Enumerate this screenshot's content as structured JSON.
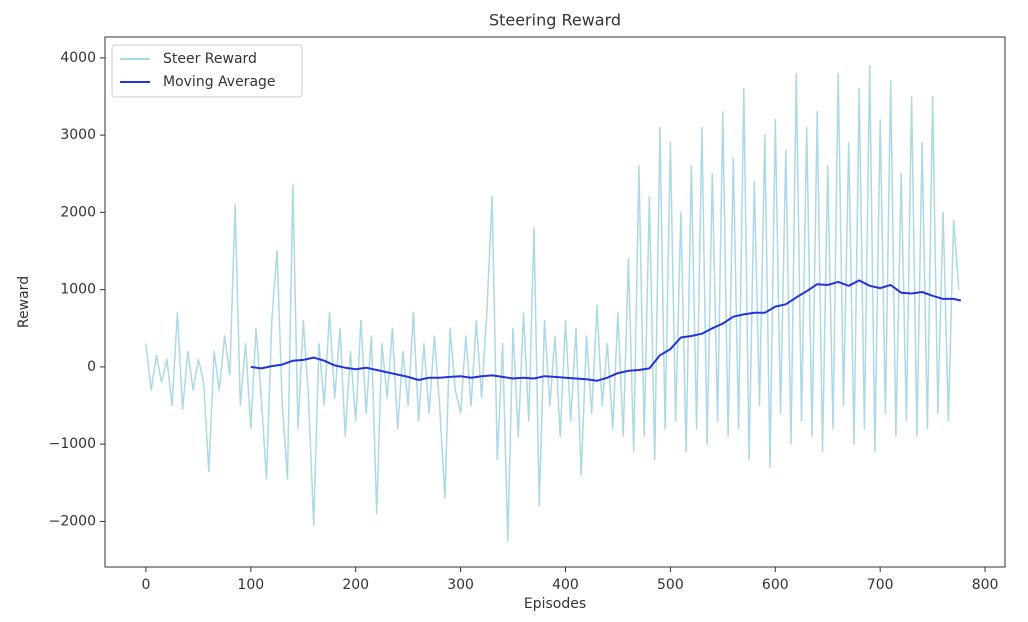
{
  "chart_data": {
    "type": "line",
    "title": "Steering Reward",
    "x_label": "Episodes",
    "y_label": "Reward",
    "xlim": [
      -39,
      819
    ],
    "ylim": [
      -2590,
      4270
    ],
    "xticks": [
      0,
      100,
      200,
      300,
      400,
      500,
      600,
      700,
      800
    ],
    "yticks": [
      {
        "value": -2000,
        "label": "−2000"
      },
      {
        "value": -1000,
        "label": "−1000"
      },
      0,
      1000,
      2000,
      3000,
      4000
    ],
    "legend": "upper left",
    "series": [
      {
        "name": "Steer Reward",
        "color": "#add8e6",
        "x": [
          0,
          5,
          10,
          15,
          20,
          25,
          30,
          35,
          40,
          45,
          50,
          55,
          60,
          65,
          70,
          75,
          80,
          85,
          90,
          95,
          100,
          105,
          110,
          115,
          120,
          125,
          130,
          135,
          140,
          145,
          150,
          155,
          160,
          165,
          170,
          175,
          180,
          185,
          190,
          195,
          200,
          205,
          210,
          215,
          220,
          225,
          230,
          235,
          240,
          245,
          250,
          255,
          260,
          265,
          270,
          275,
          280,
          285,
          290,
          295,
          300,
          305,
          310,
          315,
          320,
          325,
          330,
          335,
          340,
          345,
          350,
          355,
          360,
          365,
          370,
          375,
          380,
          385,
          390,
          395,
          400,
          405,
          410,
          415,
          420,
          425,
          430,
          435,
          440,
          445,
          450,
          455,
          460,
          465,
          470,
          475,
          480,
          485,
          490,
          495,
          500,
          505,
          510,
          515,
          520,
          525,
          530,
          535,
          540,
          545,
          550,
          555,
          560,
          565,
          570,
          575,
          580,
          585,
          590,
          595,
          600,
          605,
          610,
          615,
          620,
          625,
          630,
          635,
          640,
          645,
          650,
          655,
          660,
          665,
          670,
          675,
          680,
          685,
          690,
          695,
          700,
          705,
          710,
          715,
          720,
          725,
          730,
          735,
          740,
          745,
          750,
          755,
          760,
          765,
          770,
          775
        ],
        "values": [
          300,
          -300,
          150,
          -200,
          100,
          -500,
          700,
          -550,
          200,
          -300,
          100,
          -200,
          -1350,
          200,
          -300,
          400,
          -100,
          2100,
          -500,
          300,
          -800,
          500,
          -400,
          -1450,
          600,
          1500,
          -500,
          -1450,
          2350,
          -800,
          600,
          -400,
          -2050,
          300,
          -500,
          700,
          -400,
          500,
          -900,
          200,
          -700,
          600,
          -600,
          400,
          -1900,
          300,
          -400,
          500,
          -800,
          200,
          -500,
          700,
          -700,
          300,
          -600,
          400,
          -500,
          -1700,
          500,
          -300,
          -600,
          400,
          -500,
          600,
          -400,
          700,
          2200,
          -1200,
          300,
          -2250,
          500,
          -900,
          700,
          -700,
          1800,
          -1800,
          600,
          -500,
          400,
          -900,
          600,
          -700,
          500,
          -1400,
          400,
          -600,
          800,
          -500,
          300,
          -800,
          700,
          -900,
          1400,
          -1100,
          2600,
          -900,
          2200,
          -1200,
          3100,
          -800,
          2900,
          -700,
          2000,
          -1100,
          2600,
          -800,
          3100,
          -1000,
          2500,
          -700,
          3300,
          -900,
          2700,
          -800,
          3600,
          -1200,
          2400,
          -500,
          3000,
          -1300,
          3200,
          -600,
          2800,
          -1000,
          3800,
          -700,
          3100,
          -900,
          3300,
          -1100,
          2600,
          -800,
          3800,
          -500,
          2900,
          -1000,
          3600,
          -800,
          3900,
          -1100,
          3200,
          -600,
          3700,
          -900,
          2500,
          -700,
          3500,
          -900,
          2900,
          -800,
          3500,
          -600,
          2000,
          -700,
          1900,
          1000
        ]
      },
      {
        "name": "Moving Average",
        "color": "#2233dd",
        "x": [
          100,
          110,
          120,
          130,
          140,
          150,
          160,
          170,
          180,
          190,
          200,
          210,
          220,
          230,
          240,
          250,
          260,
          270,
          280,
          290,
          300,
          310,
          320,
          330,
          340,
          350,
          360,
          370,
          380,
          390,
          400,
          410,
          420,
          430,
          440,
          450,
          460,
          470,
          480,
          490,
          500,
          510,
          520,
          530,
          540,
          550,
          560,
          570,
          580,
          590,
          600,
          610,
          620,
          630,
          640,
          650,
          660,
          670,
          680,
          690,
          700,
          710,
          720,
          730,
          740,
          750,
          760,
          770,
          777
        ],
        "values": [
          0,
          -20,
          10,
          30,
          80,
          90,
          120,
          80,
          20,
          -10,
          -30,
          -10,
          -40,
          -70,
          -100,
          -130,
          -170,
          -140,
          -140,
          -130,
          -120,
          -140,
          -120,
          -110,
          -130,
          -150,
          -140,
          -150,
          -120,
          -130,
          -140,
          -150,
          -160,
          -180,
          -140,
          -80,
          -50,
          -40,
          -20,
          150,
          230,
          380,
          400,
          430,
          500,
          560,
          650,
          680,
          700,
          700,
          780,
          810,
          900,
          980,
          1070,
          1060,
          1100,
          1050,
          1120,
          1050,
          1020,
          1060,
          960,
          950,
          970,
          920,
          880,
          880,
          860
        ]
      }
    ]
  }
}
